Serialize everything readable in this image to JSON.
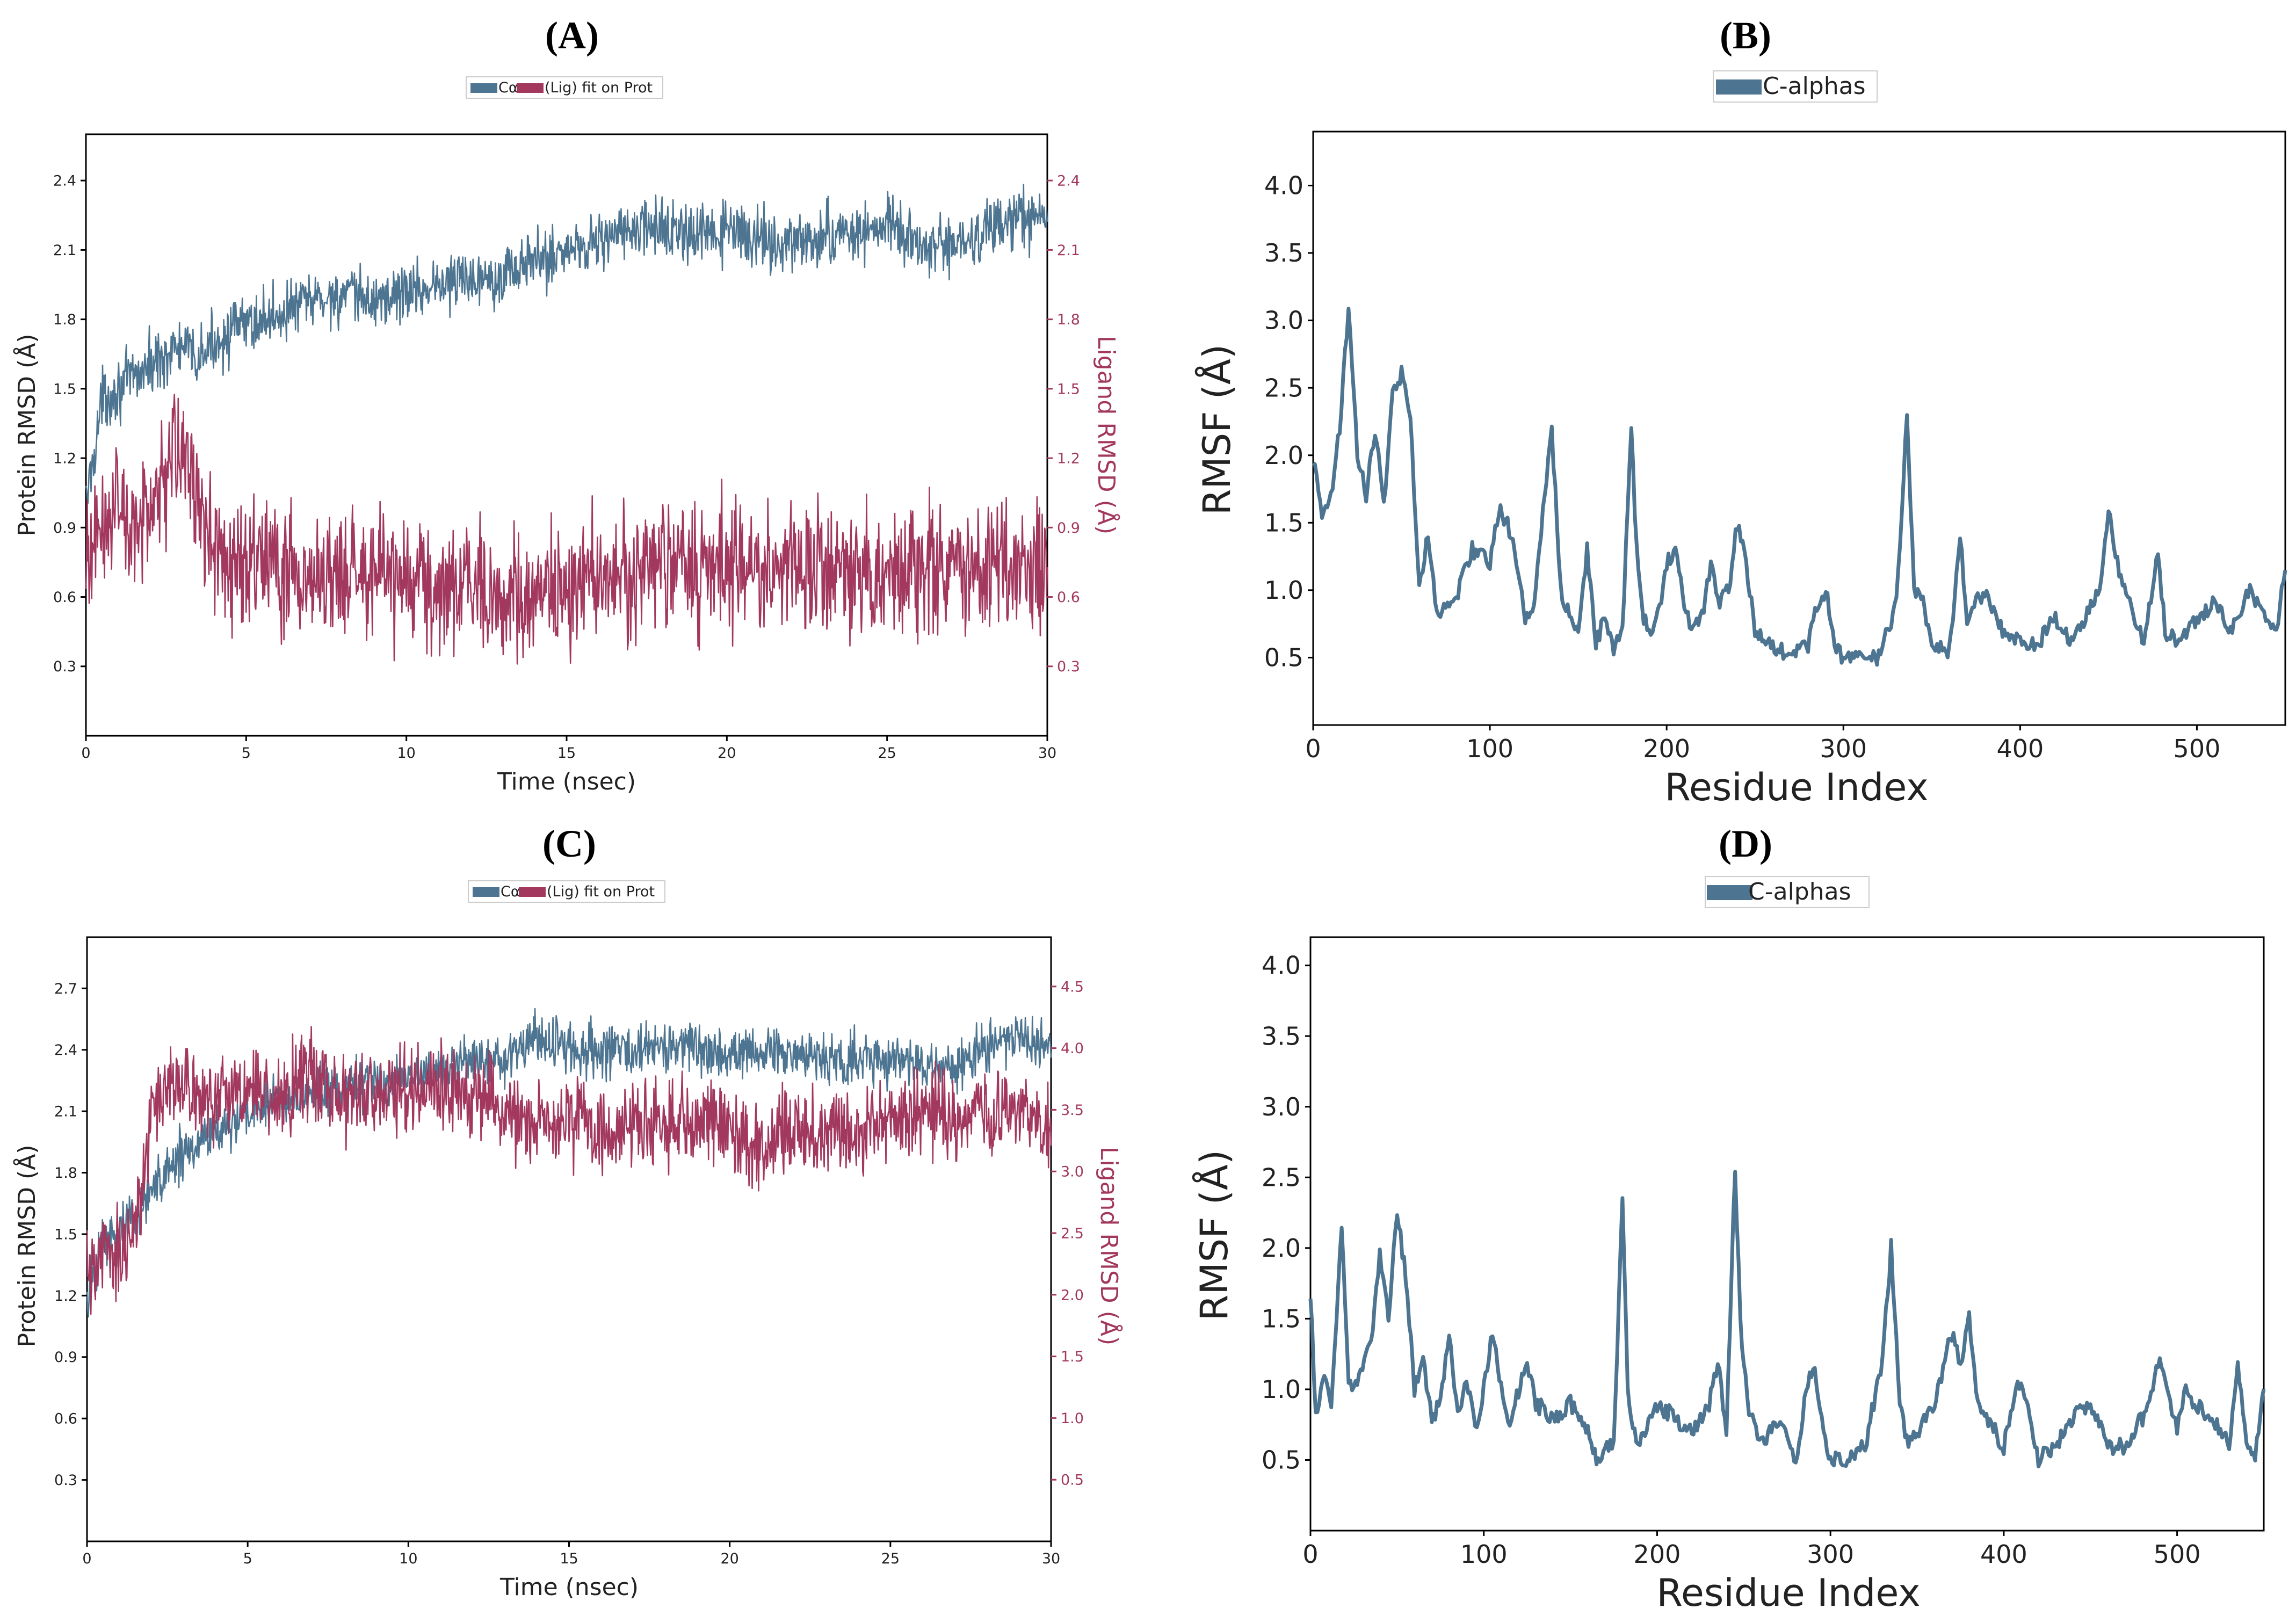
{
  "colors": {
    "protein": "#4d7591",
    "ligand": "#a3385e",
    "rmsf": "#4d7591"
  },
  "chart_data": [
    {
      "panel": "(A)",
      "type": "line",
      "xlabel": "Time (nsec)",
      "ylabel": "Protein RMSD (Å)",
      "y2label": "Ligand RMSD (Å)",
      "xlim": [
        0,
        30
      ],
      "ylim": [
        0,
        2.6
      ],
      "y2lim": [
        0,
        2.6
      ],
      "xticks": [
        0,
        5,
        10,
        15,
        20,
        25,
        30
      ],
      "yticks": [
        0.3,
        0.6,
        0.9,
        1.2,
        1.5,
        1.8,
        2.1,
        2.4
      ],
      "y2ticks": [
        0.3,
        0.6,
        0.9,
        1.2,
        1.5,
        1.8,
        2.1,
        2.4
      ],
      "legend": [
        "Cα",
        "(Lig) fit on Prot"
      ],
      "legend_position": "top-center",
      "series": [
        {
          "name": "Cα",
          "axis": "left",
          "x": [
            0,
            0.5,
            1,
            1.5,
            2,
            2.5,
            3,
            3.5,
            4,
            4.5,
            5,
            6,
            7,
            8,
            9,
            10,
            11,
            12,
            13,
            14,
            15,
            16,
            17,
            18,
            19,
            20,
            21,
            22,
            23,
            24,
            25,
            26,
            27,
            28,
            29,
            30
          ],
          "y": [
            1.0,
            1.45,
            1.5,
            1.55,
            1.6,
            1.65,
            1.68,
            1.62,
            1.7,
            1.75,
            1.78,
            1.82,
            1.88,
            1.9,
            1.88,
            1.92,
            1.95,
            1.98,
            2.0,
            2.05,
            2.1,
            2.15,
            2.18,
            2.2,
            2.15,
            2.18,
            2.15,
            2.12,
            2.15,
            2.18,
            2.2,
            2.12,
            2.1,
            2.18,
            2.22,
            2.25
          ],
          "noise": 0.09
        },
        {
          "name": "(Lig) fit on Prot",
          "axis": "right",
          "x": [
            0,
            0.5,
            1,
            1.5,
            2,
            2.5,
            3,
            3.5,
            4,
            4.5,
            5,
            6,
            7,
            8,
            9,
            10,
            11,
            12,
            13,
            14,
            15,
            16,
            17,
            18,
            19,
            20,
            21,
            22,
            23,
            24,
            25,
            26,
            27,
            28,
            29,
            30
          ],
          "y": [
            0.8,
            0.9,
            0.95,
            0.9,
            0.95,
            1.1,
            1.3,
            0.95,
            0.8,
            0.75,
            0.75,
            0.72,
            0.72,
            0.7,
            0.72,
            0.65,
            0.65,
            0.62,
            0.62,
            0.6,
            0.62,
            0.65,
            0.7,
            0.72,
            0.72,
            0.75,
            0.72,
            0.75,
            0.7,
            0.72,
            0.72,
            0.72,
            0.72,
            0.72,
            0.72,
            0.78
          ],
          "noise": 0.2
        }
      ]
    },
    {
      "panel": "(B)",
      "type": "line",
      "xlabel": "Residue Index",
      "ylabel": "RMSF (Å)",
      "xlim": [
        0,
        550
      ],
      "ylim": [
        0,
        4.4
      ],
      "xticks": [
        0,
        100,
        200,
        300,
        400,
        500
      ],
      "yticks": [
        0.5,
        1.0,
        1.5,
        2.0,
        2.5,
        3.0,
        3.5,
        4.0
      ],
      "legend": [
        "C-alphas"
      ],
      "legend_position": "top-center",
      "series": [
        {
          "name": "C-alphas",
          "x": [
            0,
            5,
            10,
            15,
            20,
            25,
            30,
            35,
            40,
            45,
            50,
            55,
            60,
            65,
            70,
            80,
            90,
            100,
            105,
            110,
            115,
            120,
            125,
            130,
            135,
            140,
            145,
            150,
            155,
            160,
            165,
            170,
            175,
            180,
            183,
            187,
            190,
            195,
            200,
            205,
            210,
            215,
            220,
            225,
            230,
            235,
            240,
            245,
            250,
            260,
            270,
            280,
            285,
            290,
            295,
            300,
            310,
            320,
            330,
            336,
            340,
            345,
            350,
            360,
            366,
            370,
            380,
            390,
            400,
            410,
            420,
            425,
            430,
            440,
            445,
            450,
            455,
            460,
            470,
            478,
            482,
            490,
            500,
            510,
            520,
            530,
            540,
            545,
            550
          ],
          "y": [
            2.0,
            1.5,
            1.7,
            2.2,
            3.1,
            2.0,
            1.7,
            2.2,
            1.6,
            2.5,
            2.6,
            2.3,
            1.0,
            1.4,
            0.8,
            0.9,
            1.3,
            1.2,
            1.6,
            1.5,
            1.2,
            0.8,
            0.9,
            1.6,
            2.2,
            1.0,
            0.8,
            0.7,
            1.3,
            0.6,
            0.8,
            0.55,
            0.7,
            2.2,
            1.3,
            0.8,
            0.7,
            0.8,
            1.2,
            1.3,
            0.9,
            0.7,
            0.8,
            1.2,
            0.9,
            1.0,
            1.5,
            1.2,
            0.7,
            0.6,
            0.5,
            0.6,
            0.9,
            1.0,
            0.6,
            0.5,
            0.5,
            0.5,
            0.9,
            2.3,
            1.0,
            0.9,
            0.6,
            0.55,
            1.4,
            0.8,
            1.0,
            0.7,
            0.6,
            0.6,
            0.8,
            0.7,
            0.6,
            0.9,
            1.0,
            1.6,
            1.2,
            1.0,
            0.6,
            1.3,
            0.7,
            0.6,
            0.8,
            0.9,
            0.7,
            1.0,
            0.8,
            0.7,
            1.2
          ]
        }
      ]
    },
    {
      "panel": "(C)",
      "type": "line",
      "xlabel": "Time (nsec)",
      "ylabel": "Protein RMSD (Å)",
      "y2label": "Ligand RMSD (Å)",
      "xlim": [
        0,
        30
      ],
      "ylim": [
        0,
        2.95
      ],
      "y2lim": [
        0,
        4.9
      ],
      "xticks": [
        0,
        5,
        10,
        15,
        20,
        25,
        30
      ],
      "yticks": [
        0.3,
        0.6,
        0.9,
        1.2,
        1.5,
        1.8,
        2.1,
        2.4,
        2.7
      ],
      "y2ticks": [
        0.5,
        1.0,
        1.5,
        2.0,
        2.5,
        3.0,
        3.5,
        4.0,
        4.5
      ],
      "legend": [
        "Cα",
        "(Lig) fit on Prot"
      ],
      "legend_position": "top-center",
      "series": [
        {
          "name": "Cα",
          "axis": "left",
          "x": [
            0,
            0.5,
            1,
            1.5,
            2,
            2.5,
            3,
            3.5,
            4,
            4.5,
            5,
            6,
            7,
            8,
            9,
            10,
            11,
            12,
            13,
            14,
            15,
            16,
            17,
            18,
            19,
            20,
            21,
            22,
            23,
            24,
            25,
            26,
            27,
            28,
            29,
            30
          ],
          "y": [
            1.2,
            1.45,
            1.5,
            1.6,
            1.7,
            1.8,
            1.9,
            1.95,
            2.0,
            2.05,
            2.1,
            2.15,
            2.2,
            2.2,
            2.25,
            2.25,
            2.3,
            2.35,
            2.35,
            2.45,
            2.4,
            2.4,
            2.4,
            2.42,
            2.42,
            2.4,
            2.38,
            2.38,
            2.35,
            2.35,
            2.35,
            2.32,
            2.32,
            2.42,
            2.45,
            2.4
          ],
          "noise": 0.09
        },
        {
          "name": "(Lig) fit on Prot",
          "axis": "right",
          "x": [
            0,
            0.5,
            1,
            1.5,
            2,
            2.5,
            3,
            3.5,
            4,
            4.5,
            5,
            6,
            7,
            8,
            9,
            10,
            11,
            12,
            13,
            14,
            15,
            16,
            17,
            18,
            19,
            20,
            21,
            22,
            23,
            24,
            25,
            26,
            27,
            28,
            29,
            30
          ],
          "y": [
            2.2,
            2.3,
            2.4,
            2.5,
            3.5,
            3.7,
            3.7,
            3.6,
            3.6,
            3.6,
            3.6,
            3.6,
            3.8,
            3.6,
            3.6,
            3.7,
            3.7,
            3.6,
            3.5,
            3.4,
            3.4,
            3.3,
            3.4,
            3.4,
            3.4,
            3.3,
            3.2,
            3.3,
            3.3,
            3.3,
            3.4,
            3.5,
            3.4,
            3.5,
            3.5,
            3.3
          ],
          "noise": 0.25
        }
      ]
    },
    {
      "panel": "(D)",
      "type": "line",
      "xlabel": "Residue Index",
      "ylabel": "RMSF (Å)",
      "xlim": [
        0,
        550
      ],
      "ylim": [
        0,
        4.2
      ],
      "xticks": [
        0,
        100,
        200,
        300,
        400,
        500
      ],
      "yticks": [
        0.5,
        1.0,
        1.5,
        2.0,
        2.5,
        3.0,
        3.5,
        4.0
      ],
      "legend": [
        "C-alphas"
      ],
      "legend_position": "top-center",
      "series": [
        {
          "name": "C-alphas",
          "x": [
            0,
            3,
            8,
            12,
            18,
            22,
            28,
            35,
            40,
            45,
            50,
            55,
            60,
            65,
            70,
            75,
            80,
            85,
            90,
            95,
            100,
            105,
            110,
            115,
            120,
            125,
            130,
            140,
            150,
            160,
            165,
            170,
            175,
            180,
            183,
            187,
            190,
            200,
            210,
            220,
            230,
            235,
            240,
            245,
            248,
            252,
            260,
            270,
            280,
            285,
            290,
            295,
            300,
            310,
            320,
            330,
            335,
            340,
            345,
            350,
            360,
            370,
            375,
            380,
            385,
            390,
            400,
            410,
            420,
            430,
            440,
            450,
            460,
            470,
            480,
            490,
            500,
            505,
            510,
            520,
            530,
            535,
            540,
            545,
            550
          ],
          "y": [
            1.7,
            0.8,
            1.1,
            0.9,
            2.15,
            1.0,
            1.1,
            1.3,
            2.0,
            1.5,
            2.25,
            1.8,
            1.0,
            1.2,
            0.8,
            0.9,
            1.4,
            0.8,
            1.1,
            0.7,
            1.0,
            1.4,
            1.0,
            0.7,
            1.0,
            1.2,
            0.9,
            0.8,
            0.9,
            0.7,
            0.5,
            0.6,
            0.6,
            2.35,
            1.0,
            0.7,
            0.6,
            0.9,
            0.8,
            0.7,
            0.9,
            1.2,
            0.7,
            2.6,
            1.5,
            0.9,
            0.6,
            0.8,
            0.5,
            0.9,
            1.2,
            0.8,
            0.5,
            0.5,
            0.6,
            1.2,
            2.0,
            0.9,
            0.6,
            0.7,
            0.9,
            1.4,
            1.2,
            1.5,
            0.9,
            0.8,
            0.6,
            1.1,
            0.5,
            0.6,
            0.8,
            0.9,
            0.6,
            0.6,
            0.8,
            1.2,
            0.7,
            1.0,
            0.9,
            0.8,
            0.6,
            1.2,
            0.6,
            0.5,
            1.0
          ]
        }
      ]
    }
  ]
}
